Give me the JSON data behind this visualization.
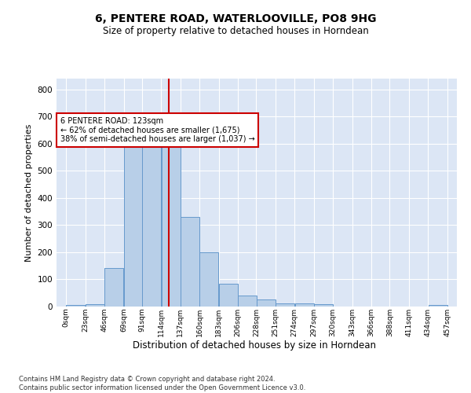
{
  "title": "6, PENTERE ROAD, WATERLOOVILLE, PO8 9HG",
  "subtitle": "Size of property relative to detached houses in Horndean",
  "xlabel": "Distribution of detached houses by size in Horndean",
  "ylabel": "Number of detached properties",
  "bar_color": "#b8cfe8",
  "bar_edgecolor": "#6699cc",
  "background_color": "#dce6f5",
  "grid_color": "#ffffff",
  "vline_x": 123,
  "vline_color": "#cc0000",
  "annotation_text": "6 PENTERE ROAD: 123sqm\n← 62% of detached houses are smaller (1,675)\n38% of semi-detached houses are larger (1,037) →",
  "annotation_box_color": "#cc0000",
  "bin_edges": [
    0,
    23,
    46,
    69,
    91,
    114,
    137,
    160,
    183,
    206,
    228,
    251,
    274,
    297,
    320,
    343,
    366,
    388,
    411,
    434,
    457
  ],
  "bar_heights": [
    7,
    9,
    143,
    635,
    630,
    609,
    330,
    200,
    85,
    41,
    25,
    11,
    11,
    9,
    0,
    0,
    0,
    0,
    0,
    5
  ],
  "ylim": [
    0,
    840
  ],
  "yticks": [
    0,
    100,
    200,
    300,
    400,
    500,
    600,
    700,
    800
  ],
  "footnote": "Contains HM Land Registry data © Crown copyright and database right 2024.\nContains public sector information licensed under the Open Government Licence v3.0."
}
